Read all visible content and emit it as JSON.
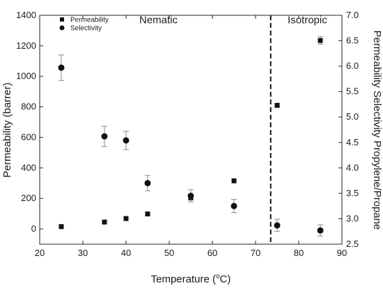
{
  "chart_data": {
    "type": "scatter",
    "xlabel": "Temperature (°C)",
    "xlabel_parts": {
      "prefix": "Temperature (",
      "superscript": "o",
      "suffix": "C)"
    },
    "ylabel_left": "Permeability (barrer)",
    "ylabel_right": "Permeability Selectivity Propylene/Propane",
    "xlim": [
      20,
      90
    ],
    "ylim_left": [
      -100,
      1400
    ],
    "ylim_right": [
      2.5,
      7.0
    ],
    "x_ticks": [
      20,
      30,
      40,
      50,
      60,
      70,
      80,
      90
    ],
    "y_ticks_left": [
      0,
      200,
      400,
      600,
      800,
      1000,
      1200,
      1400
    ],
    "y_ticks_right": [
      "2.5",
      "3.0",
      "3.5",
      "4.0",
      "4.5",
      "5.0",
      "5.5",
      "6.0",
      "6.5",
      "7.0"
    ],
    "grid": false,
    "legend_placement": "top-left",
    "annotations": [
      {
        "text": "Nematic",
        "x": 47.5,
        "y": 1370
      },
      {
        "text": "Isotropic",
        "x": 82,
        "y": 1370
      }
    ],
    "transition_x": 73.5,
    "series": [
      {
        "name": "Permeability",
        "marker": "square",
        "axis": "left",
        "x": [
          25,
          35,
          40,
          45,
          55,
          65,
          75,
          85
        ],
        "y": [
          15,
          45,
          68,
          98,
          203,
          315,
          810,
          1235
        ],
        "error": [
          0,
          0,
          0,
          0,
          0,
          0,
          10,
          25
        ]
      },
      {
        "name": "Selectivity",
        "marker": "circle",
        "axis": "right",
        "x": [
          25,
          35,
          40,
          45,
          55,
          65,
          75,
          85
        ],
        "y": [
          5.97,
          4.62,
          4.54,
          3.7,
          3.45,
          3.25,
          2.87,
          2.77
        ],
        "error": [
          0.25,
          0.2,
          0.18,
          0.15,
          0.12,
          0.13,
          0.12,
          0.11
        ]
      }
    ]
  }
}
